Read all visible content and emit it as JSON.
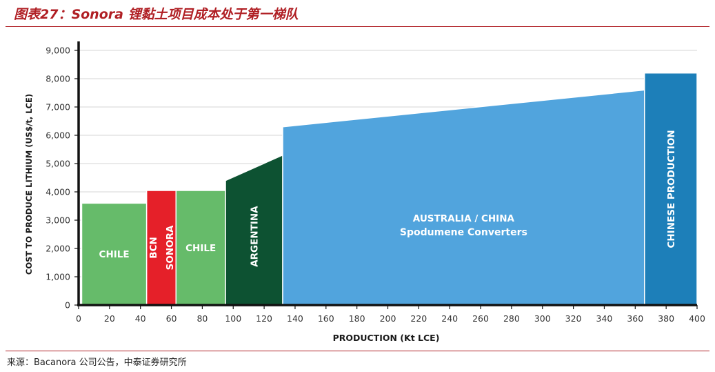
{
  "figure": {
    "title": "图表27：Sonora 锂黏土项目成本处于第一梯队",
    "source": "来源：Bacanora 公司公告，中泰证券研究所"
  },
  "chart_data": {
    "type": "area",
    "xlabel": "PRODUCTION (Kt LCE)",
    "ylabel": "COST TO PRODUCE LITHIUM (US$/t, LCE)",
    "xlim": [
      0,
      400
    ],
    "ylim": [
      0,
      9000
    ],
    "x_ticks": [
      0,
      20,
      40,
      60,
      80,
      100,
      120,
      140,
      160,
      180,
      200,
      220,
      240,
      260,
      280,
      300,
      320,
      340,
      360,
      380,
      400
    ],
    "y_ticks": [
      0,
      1000,
      2000,
      3000,
      4000,
      5000,
      6000,
      7000,
      8000,
      9000
    ],
    "y_tick_labels": [
      "0",
      "1,000",
      "2,000",
      "3,000",
      "4,000",
      "5,000",
      "6,000",
      "7,000",
      "8,000",
      "9,000"
    ],
    "grid": "horizontal",
    "segments": [
      {
        "label": [
          "CHILE"
        ],
        "x": [
          2,
          44
        ],
        "y": [
          3600,
          3600
        ],
        "color": "#66bb6a",
        "label_dir": "horizontal",
        "label_color": "#ffffff"
      },
      {
        "label": [
          "BCN",
          "SONORA"
        ],
        "x": [
          44,
          63
        ],
        "y": [
          4050,
          4050
        ],
        "color": "#e52029",
        "label_dir": "vertical",
        "label_color": "#ffffff"
      },
      {
        "label": [
          "CHILE"
        ],
        "x": [
          63,
          95
        ],
        "y": [
          4050,
          4050
        ],
        "color": "#66bb6a",
        "label_dir": "horizontal",
        "label_color": "#ffffff"
      },
      {
        "label": [
          "ARGENTINA"
        ],
        "x": [
          95,
          132
        ],
        "y": [
          4400,
          5300
        ],
        "color": "#0d5232",
        "label_dir": "vertical",
        "label_color": "#ffffff"
      },
      {
        "label": [
          "AUSTRALIA / CHINA",
          "Spodumene Converters"
        ],
        "x": [
          132,
          366
        ],
        "y": [
          6300,
          7600
        ],
        "color": "#51a4dd",
        "label_dir": "horizontal",
        "label_color": "#ffffff"
      },
      {
        "label": [
          "CHINESE PRODUCTION"
        ],
        "x": [
          366,
          400
        ],
        "y": [
          8200,
          8200
        ],
        "color": "#1d7fb9",
        "label_dir": "vertical",
        "label_color": "#ffffff"
      }
    ]
  }
}
